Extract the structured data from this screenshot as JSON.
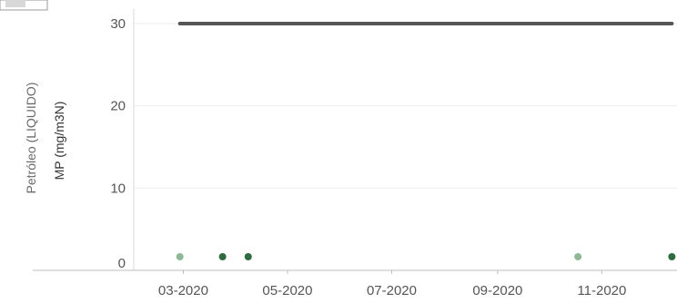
{
  "chart_data": {
    "type": "scatter",
    "row_label": "Petróleo (LIQUIDO)",
    "ylabel": "MP (mg/m3N)",
    "xlabel": "",
    "title": "",
    "ylim": [
      0,
      30
    ],
    "yticks": [
      0,
      10,
      20,
      30
    ],
    "xlim": [
      "2020-02-01",
      "2020-12-15"
    ],
    "xticks": [
      {
        "date": "2020-03-01",
        "label": "03-2020"
      },
      {
        "date": "2020-05-01",
        "label": "05-2020"
      },
      {
        "date": "2020-07-01",
        "label": "07-2020"
      },
      {
        "date": "2020-09-01",
        "label": "09-2020"
      },
      {
        "date": "2020-11-01",
        "label": "11-2020"
      }
    ],
    "grid": true,
    "limit_line": {
      "y": 30,
      "x_start": "2020-02-28",
      "x_end": "2020-12-12",
      "color": "#555555"
    },
    "series": [
      {
        "color": "#8fb996",
        "points": [
          {
            "x": "2020-02-28",
            "y": 1
          },
          {
            "x": "2020-10-18",
            "y": 1
          }
        ]
      },
      {
        "color": "#2f6b3f",
        "points": [
          {
            "x": "2020-03-24",
            "y": 1
          },
          {
            "x": "2020-04-08",
            "y": 1
          },
          {
            "x": "2020-12-12",
            "y": 1
          }
        ]
      }
    ]
  }
}
